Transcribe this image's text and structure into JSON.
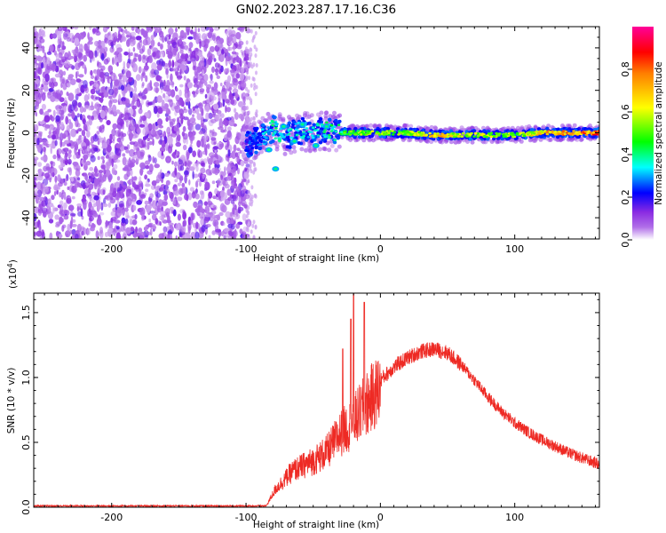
{
  "title": "GN02.2023.287.17.16.C36",
  "chart_data": [
    {
      "type": "heatmap",
      "xlabel": "Height of straight line (km)",
      "ylabel": "Frequency (Hz)",
      "xlim": [
        -258,
        163
      ],
      "ylim": [
        -50,
        50
      ],
      "xticks": [
        -200,
        -100,
        0,
        100
      ],
      "xtick_labels": [
        "-200",
        "-100",
        "0",
        "100"
      ],
      "yticks": [
        -40,
        -20,
        0,
        20,
        40
      ],
      "ytick_labels": [
        "-40",
        "-20",
        "0",
        "20",
        "40"
      ],
      "colorbar": {
        "label": "Normalized spectral amplitude",
        "range": [
          0,
          1
        ],
        "ticks": [
          0.0,
          0.2,
          0.4,
          0.6,
          0.8
        ],
        "tick_labels": [
          "0.0",
          "0.2",
          "0.4",
          "0.6",
          "0.8"
        ],
        "colormap": [
          "#ffffff",
          "#8a2be2",
          "#0000ff",
          "#00ffff",
          "#00ff00",
          "#ffff00",
          "#ff0000",
          "#ff00aa"
        ]
      },
      "noise_region_x": [
        -258,
        -98
      ],
      "signal_track": [
        {
          "x": -100,
          "y": -6,
          "amp": 0.2
        },
        {
          "x": -90,
          "y": -3,
          "amp": 0.3
        },
        {
          "x": -80,
          "y": 2,
          "amp": 0.4
        },
        {
          "x": -70,
          "y": -2,
          "amp": 0.35
        },
        {
          "x": -60,
          "y": 1,
          "amp": 0.35
        },
        {
          "x": -50,
          "y": 0,
          "amp": 0.35
        },
        {
          "x": -40,
          "y": 1,
          "amp": 0.4
        },
        {
          "x": -30,
          "y": 0,
          "amp": 0.45
        },
        {
          "x": -20,
          "y": 0,
          "amp": 0.55
        },
        {
          "x": -10,
          "y": 0,
          "amp": 0.55
        },
        {
          "x": 0,
          "y": 0,
          "amp": 0.6
        },
        {
          "x": 20,
          "y": 0,
          "amp": 0.55
        },
        {
          "x": 40,
          "y": -1,
          "amp": 0.75
        },
        {
          "x": 60,
          "y": -1,
          "amp": 0.6
        },
        {
          "x": 80,
          "y": -1,
          "amp": 0.6
        },
        {
          "x": 100,
          "y": -1,
          "amp": 0.55
        },
        {
          "x": 120,
          "y": 0,
          "amp": 0.7
        },
        {
          "x": 140,
          "y": 0,
          "amp": 0.8
        },
        {
          "x": 163,
          "y": 0,
          "amp": 0.85
        }
      ]
    },
    {
      "type": "line",
      "xlabel": "Height of straight line (km)",
      "ylabel": "SNR (10 * v/v)",
      "yscale_label": "(x10",
      "yscale_exponent": "4",
      "yscale_close": ")",
      "xlim": [
        -258,
        163
      ],
      "ylim": [
        0,
        1.65
      ],
      "xticks": [
        -200,
        -100,
        0,
        100
      ],
      "xtick_labels": [
        "-200",
        "-100",
        "0",
        "100"
      ],
      "yticks": [
        0,
        0.5,
        1.0,
        1.5
      ],
      "ytick_labels": [
        "0.0",
        "0.5",
        "1.0",
        "1.5"
      ],
      "color": "#ee2a24",
      "series_envelope": [
        {
          "x": -258,
          "y": 0.01
        },
        {
          "x": -85,
          "y": 0.01
        },
        {
          "x": -78,
          "y": 0.15
        },
        {
          "x": -65,
          "y": 0.3
        },
        {
          "x": -50,
          "y": 0.38
        },
        {
          "x": -40,
          "y": 0.45
        },
        {
          "x": -30,
          "y": 0.6
        },
        {
          "x": -20,
          "y": 0.7
        },
        {
          "x": -10,
          "y": 0.85
        },
        {
          "x": 0,
          "y": 0.98
        },
        {
          "x": 10,
          "y": 1.08
        },
        {
          "x": 20,
          "y": 1.15
        },
        {
          "x": 30,
          "y": 1.2
        },
        {
          "x": 40,
          "y": 1.22
        },
        {
          "x": 50,
          "y": 1.19
        },
        {
          "x": 60,
          "y": 1.1
        },
        {
          "x": 70,
          "y": 0.98
        },
        {
          "x": 80,
          "y": 0.85
        },
        {
          "x": 90,
          "y": 0.74
        },
        {
          "x": 100,
          "y": 0.65
        },
        {
          "x": 110,
          "y": 0.58
        },
        {
          "x": 120,
          "y": 0.52
        },
        {
          "x": 130,
          "y": 0.47
        },
        {
          "x": 140,
          "y": 0.42
        },
        {
          "x": 150,
          "y": 0.38
        },
        {
          "x": 163,
          "y": 0.33
        }
      ],
      "spikes": [
        {
          "x": -28,
          "y": 1.22
        },
        {
          "x": -22,
          "y": 1.45
        },
        {
          "x": -20,
          "y": 1.65
        },
        {
          "x": -12,
          "y": 1.58
        }
      ]
    }
  ]
}
